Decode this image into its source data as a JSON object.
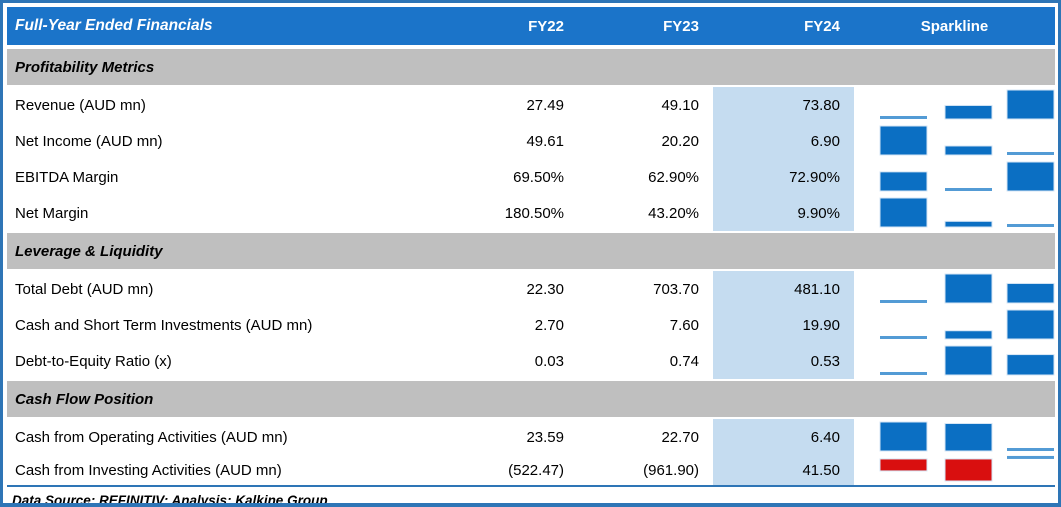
{
  "chart_data": {
    "type": "table",
    "title": "Full-Year Ended Financials",
    "columns": [
      "FY22",
      "FY23",
      "FY24"
    ],
    "sparkline_header": "Sparkline",
    "highlighted_column": "FY24",
    "sections": [
      {
        "label": "Profitability Metrics",
        "rows": [
          {
            "label": "Revenue (AUD mn)",
            "display": [
              "27.49",
              "49.10",
              "73.80"
            ],
            "values": [
              27.49,
              49.1,
              73.8
            ]
          },
          {
            "label": "Net Income (AUD mn)",
            "display": [
              "49.61",
              "20.20",
              "6.90"
            ],
            "values": [
              49.61,
              20.2,
              6.9
            ]
          },
          {
            "label": "EBITDA Margin",
            "display": [
              "69.50%",
              "62.90%",
              "72.90%"
            ],
            "values": [
              69.5,
              62.9,
              72.9
            ]
          },
          {
            "label": "Net Margin",
            "display": [
              "180.50%",
              "43.20%",
              "9.90%"
            ],
            "values": [
              180.5,
              43.2,
              9.9
            ]
          }
        ]
      },
      {
        "label": "Leverage & Liquidity",
        "rows": [
          {
            "label": "Total Debt (AUD mn)",
            "display": [
              "22.30",
              "703.70",
              "481.10"
            ],
            "values": [
              22.3,
              703.7,
              481.1
            ]
          },
          {
            "label": "Cash and Short Term Investments (AUD mn)",
            "display": [
              "2.70",
              "7.60",
              "19.90"
            ],
            "values": [
              2.7,
              7.6,
              19.9
            ]
          },
          {
            "label": "Debt-to-Equity Ratio (x)",
            "display": [
              "0.03",
              "0.74",
              "0.53"
            ],
            "values": [
              0.03,
              0.74,
              0.53
            ]
          }
        ]
      },
      {
        "label": "Cash Flow Position",
        "rows": [
          {
            "label": "Cash from Operating Activities (AUD mn)",
            "display": [
              "23.59",
              "22.70",
              "6.40"
            ],
            "values": [
              23.59,
              22.7,
              6.4
            ]
          },
          {
            "label": "Cash from Investing Activities (AUD mn)",
            "display": [
              "(522.47)",
              "(961.90)",
              "41.50"
            ],
            "values": [
              -522.47,
              -961.9,
              41.5
            ]
          }
        ]
      }
    ],
    "sparkline": {
      "type": "bar",
      "scaling": "per-row min-max",
      "negative_values_red": true
    },
    "footer": "Data Source: REFINITIV; Analysis: Kalkine Group",
    "colors": {
      "header_bg": "#1B74C9",
      "header_text": "#FFFFFF",
      "section_bg": "#BFBFBF",
      "fy24_highlight": "#C5DCF0",
      "sparkline_bar": "#0B6FC3",
      "sparkline_min_sliver": "#539BD5",
      "sparkline_negative": "#D90F0F",
      "frame_border": "#2E75B6"
    }
  }
}
